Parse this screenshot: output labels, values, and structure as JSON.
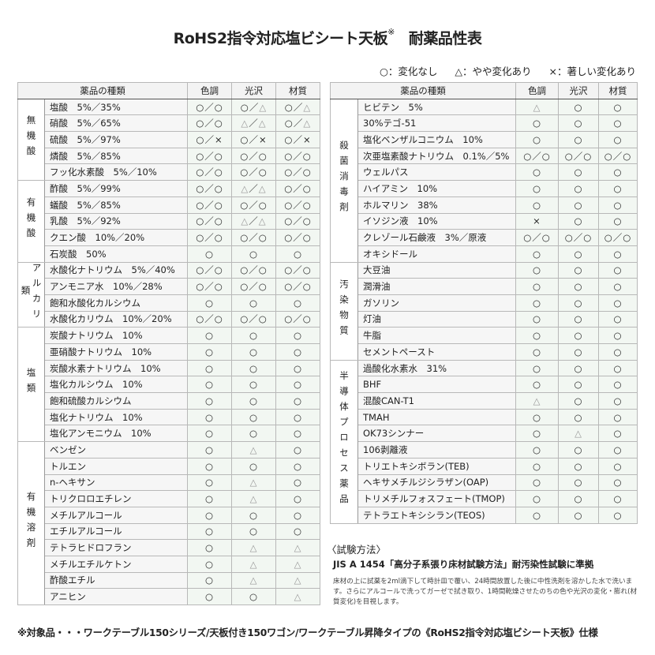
{
  "title": "RoHS2指令対応塩ビシート天板",
  "title_mark": "※",
  "title2": "耐薬品性表",
  "legend": [
    "○：変化なし",
    "△：やや変化あり",
    "×：著しい変化あり"
  ],
  "headers": {
    "name": "薬品の種類",
    "c1": "色調",
    "c2": "光沢",
    "c3": "材質"
  },
  "left_groups": [
    {
      "category": "無機酸",
      "rows": [
        [
          "塩酸　5%／35%",
          "○／○",
          "○／△",
          "○／△"
        ],
        [
          "硝酸　5%／65%",
          "○／○",
          "△／△",
          "○／△"
        ],
        [
          "硫酸　5%／97%",
          "○／×",
          "○／×",
          "○／×"
        ],
        [
          "燐酸　5%／85%",
          "○／○",
          "○／○",
          "○／○"
        ],
        [
          "フッ化水素酸　5%／10%",
          "○／○",
          "○／○",
          "○／○"
        ]
      ]
    },
    {
      "category": "有機酸",
      "rows": [
        [
          "酢酸　5%／99%",
          "○／○",
          "△／△",
          "○／○"
        ],
        [
          "蟻酸　5%／85%",
          "○／○",
          "○／○",
          "○／○"
        ],
        [
          "乳酸　5%／92%",
          "○／○",
          "△／△",
          "○／○"
        ],
        [
          "クエン酸　10%／20%",
          "○／○",
          "○／○",
          "○／○"
        ],
        [
          "石炭酸　50%",
          "○",
          "○",
          "○"
        ]
      ]
    },
    {
      "category": "アルカリ類",
      "rows": [
        [
          "水酸化ナトリウム　5%／40%",
          "○／○",
          "○／○",
          "○／○"
        ],
        [
          "アンモニア水　10%／28%",
          "○／○",
          "○／○",
          "○／○"
        ],
        [
          "飽和水酸化カルシウム",
          "○",
          "○",
          "○"
        ],
        [
          "水酸化カリウム　10%／20%",
          "○／○",
          "○／○",
          "○／○"
        ]
      ]
    },
    {
      "category": "塩類",
      "rows": [
        [
          "炭酸ナトリウム　10%",
          "○",
          "○",
          "○"
        ],
        [
          "亜硝酸ナトリウム　10%",
          "○",
          "○",
          "○"
        ],
        [
          "炭酸水素ナトリウム　10%",
          "○",
          "○",
          "○"
        ],
        [
          "塩化カルシウム　10%",
          "○",
          "○",
          "○"
        ],
        [
          "飽和硫酸カルシウム",
          "○",
          "○",
          "○"
        ],
        [
          "塩化ナトリウム　10%",
          "○",
          "○",
          "○"
        ],
        [
          "塩化アンモニウム　10%",
          "○",
          "○",
          "○"
        ]
      ]
    },
    {
      "category": "有機溶剤",
      "rows": [
        [
          "ベンゼン",
          "○",
          "△",
          "○"
        ],
        [
          "トルエン",
          "○",
          "○",
          "○"
        ],
        [
          "n-ヘキサン",
          "○",
          "△",
          "○"
        ],
        [
          "トリクロロエチレン",
          "○",
          "△",
          "○"
        ],
        [
          "メチルアルコール",
          "○",
          "○",
          "○"
        ],
        [
          "エチルアルコール",
          "○",
          "○",
          "○"
        ],
        [
          "テトラヒドロフラン",
          "○",
          "△",
          "△"
        ],
        [
          "メチルエチルケトン",
          "○",
          "△",
          "△"
        ],
        [
          "酢酸エチル",
          "○",
          "△",
          "△"
        ],
        [
          "アニヒン",
          "○",
          "○",
          "△"
        ]
      ]
    }
  ],
  "right_groups": [
    {
      "category": "殺菌消毒剤",
      "rows": [
        [
          "ヒビテン　5%",
          "△",
          "○",
          "○"
        ],
        [
          "30%テゴ-51",
          "○",
          "○",
          "○"
        ],
        [
          "塩化ベンザルコニウム　10%",
          "○",
          "○",
          "○"
        ],
        [
          "次亜塩素酸ナトリウム　0.1%／5%",
          "○／○",
          "○／○",
          "○／○"
        ],
        [
          "ウェルパス",
          "○",
          "○",
          "○"
        ],
        [
          "ハイアミン　10%",
          "○",
          "○",
          "○"
        ],
        [
          "ホルマリン　38%",
          "○",
          "○",
          "○"
        ],
        [
          "イソジン液　10%",
          "×",
          "○",
          "○"
        ],
        [
          "クレゾール石鹸液　3%／原液",
          "○／○",
          "○／○",
          "○／○"
        ],
        [
          "オキシドール",
          "○",
          "○",
          "○"
        ]
      ]
    },
    {
      "category": "汚染物質",
      "rows": [
        [
          "大豆油",
          "○",
          "○",
          "○"
        ],
        [
          "潤滑油",
          "○",
          "○",
          "○"
        ],
        [
          "ガソリン",
          "○",
          "○",
          "○"
        ],
        [
          "灯油",
          "○",
          "○",
          "○"
        ],
        [
          "牛脂",
          "○",
          "○",
          "○"
        ],
        [
          "セメントペースト",
          "○",
          "○",
          "○"
        ]
      ]
    },
    {
      "category": "半導体プロセス薬品",
      "rows": [
        [
          "過酸化水素水　31%",
          "○",
          "○",
          "○"
        ],
        [
          "BHF",
          "○",
          "○",
          "○"
        ],
        [
          "混酸CAN-T1",
          "△",
          "○",
          "○"
        ],
        [
          "TMAH",
          "○",
          "○",
          "○"
        ],
        [
          "OK73シンナー",
          "○",
          "△",
          "○"
        ],
        [
          "106剥離液",
          "○",
          "○",
          "○"
        ],
        [
          "トリエトキシボラン(TEB)",
          "○",
          "○",
          "○"
        ],
        [
          "ヘキサメチルジシラザン(OAP)",
          "○",
          "○",
          "○"
        ],
        [
          "トリメチルフォスフェート(TMOP)",
          "○",
          "○",
          "○"
        ],
        [
          "テトラエトキシシラン(TEOS)",
          "○",
          "○",
          "○"
        ]
      ]
    }
  ],
  "method": {
    "heading": "〈試験方法〉",
    "standard": "JIS A 1454「高分子系張り床材試験方法」耐汚染性試験に準拠",
    "body": "床材の上に試薬を2ml滴下して時計皿で覆い、24時間放置した後に中性洗剤を溶かした水で洗います。さらにアルコールで洗ってガーゼで拭き取り、1時間乾燥させたのちの色や光沢の変化・膨れ(材質変化)を目視します。"
  },
  "footer": "※対象品・・・ワークテーブル150シリーズ/天板付き150ワゴン/ワークテーブル昇降タイプの《RoHS2指令対応塩ビシート天板》仕様"
}
